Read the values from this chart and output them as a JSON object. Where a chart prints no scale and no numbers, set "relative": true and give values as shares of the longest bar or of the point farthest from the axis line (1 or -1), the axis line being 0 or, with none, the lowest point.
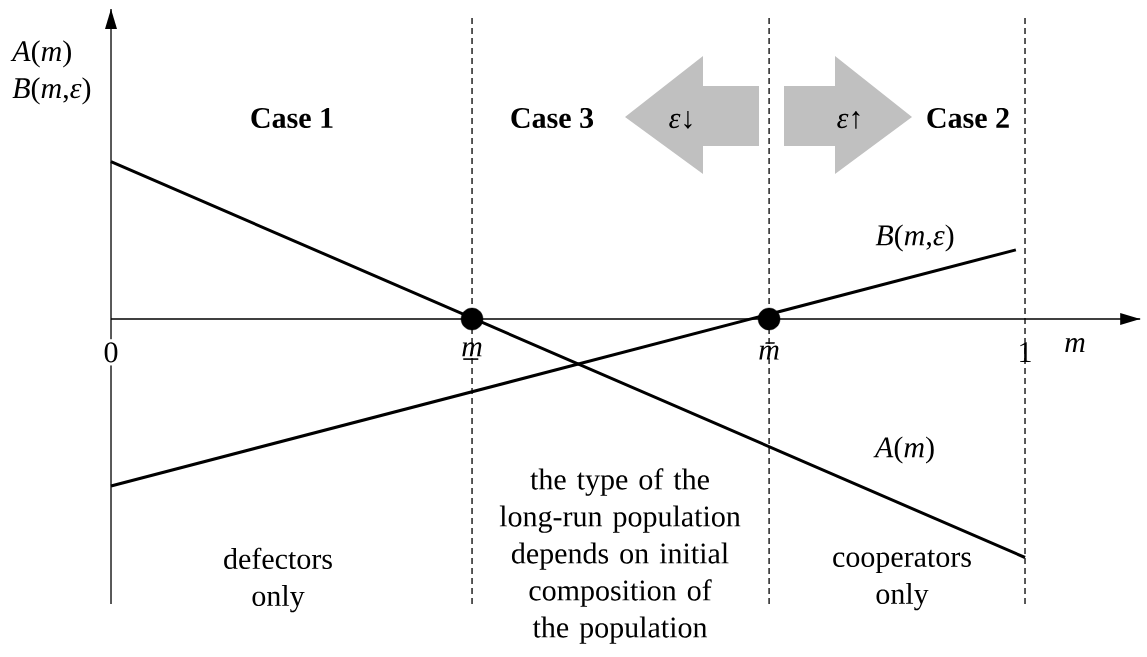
{
  "chart_data": {
    "type": "line",
    "relative": true,
    "xlim": [
      0,
      1.126
    ],
    "xticks": [
      0,
      {
        "value": 0.395,
        "label": "m̲"
      },
      {
        "value": 0.72,
        "label": "m̄"
      },
      1
    ],
    "xlabel": "m",
    "ylabel": "*A*(*m*) *B*(*m*,*ε*)",
    "series": [
      {
        "name": "*A*(*m*)",
        "color": "#000000",
        "marker": "none",
        "x": [
          0,
          1
        ],
        "values": [
          0.66,
          -1
        ]
      },
      {
        "name": "*B*(*m*,*ε*)",
        "color": "#000000",
        "marker": "none",
        "x": [
          0,
          0.99
        ],
        "values": [
          -0.7,
          0.29
        ]
      },
      {
        "type": "scatter",
        "marker": "circle",
        "color": "#000000",
        "x": [
          0.395,
          0.72
        ],
        "values": [
          0,
          0
        ]
      }
    ],
    "ref_lines": [
      {
        "axis": "x",
        "value": 0.395,
        "line_style": "dashed",
        "color": "#000000"
      },
      {
        "axis": "x",
        "value": 0.72,
        "line_style": "dashed",
        "color": "#000000"
      },
      {
        "axis": "x",
        "value": 1,
        "line_style": "dashed",
        "color": "#000000"
      }
    ],
    "annotations": [
      "Case 1",
      "Case 3",
      "Case 2",
      "defectors only",
      "the type of the long-run population depends on initial composition of the population",
      "cooperators only",
      "*ε*↓",
      "*ε*↑"
    ]
  }
}
